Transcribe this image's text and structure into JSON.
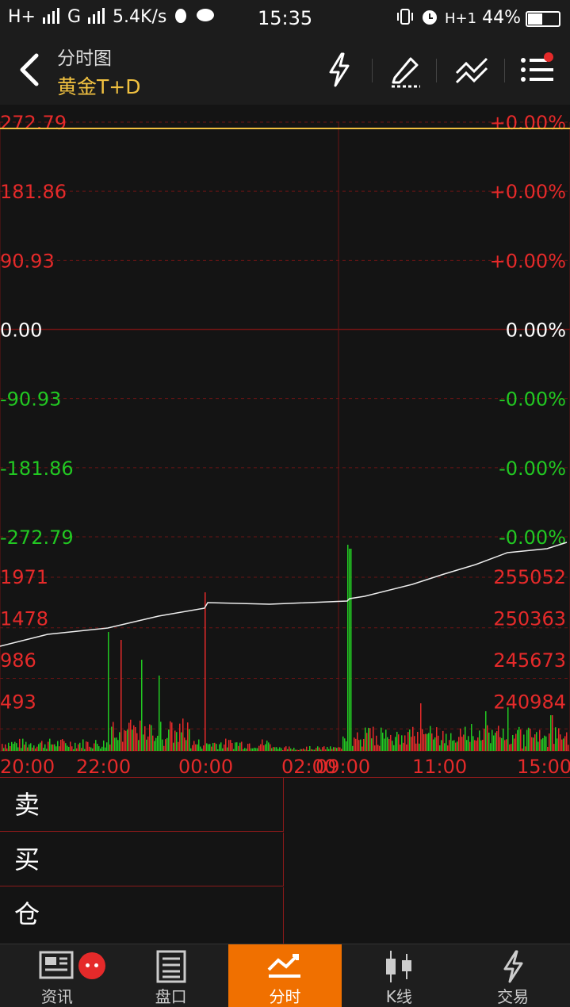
{
  "status": {
    "left": "H+ 〈 G 〈 5.4K/s",
    "network": "H+",
    "network2": "G",
    "speed": "5.4K/s",
    "time": "15:35",
    "right_network": "H+1",
    "battery": "44%"
  },
  "header": {
    "title": "分时图",
    "subtitle": "黄金T+D"
  },
  "chart_data": {
    "type": "line",
    "price_axis_left": [
      "272.79",
      "181.86",
      "90.93",
      "0.00",
      "-90.93",
      "-181.86",
      "-272.79"
    ],
    "price_axis_right": [
      "+0.00%",
      "+0.00%",
      "+0.00%",
      "0.00%",
      "-0.00%",
      "-0.00%",
      "-0.00%"
    ],
    "volume_axis_left": [
      "1971",
      "1478",
      "986",
      "493"
    ],
    "volume_axis_right": [
      "255052",
      "250363",
      "245673",
      "240984"
    ],
    "time_labels": [
      "20:00",
      "22:00",
      "00:00",
      "02:00",
      "09:00",
      "11:00",
      "15:00"
    ],
    "colors": {
      "up": "#e52a2a",
      "down": "#22c822",
      "neutral": "#ffffff",
      "price_line": "#f0c040",
      "grid": "#6a1414"
    }
  },
  "panel": {
    "sell": "卖",
    "buy": "买",
    "position": "仓"
  },
  "tabs": [
    {
      "label": "资讯",
      "icon": "news-icon"
    },
    {
      "label": "盘口",
      "icon": "orderbook-icon"
    },
    {
      "label": "分时",
      "icon": "timeshare-icon"
    },
    {
      "label": "K线",
      "icon": "candlestick-icon"
    },
    {
      "label": "交易",
      "icon": "trade-icon"
    }
  ]
}
